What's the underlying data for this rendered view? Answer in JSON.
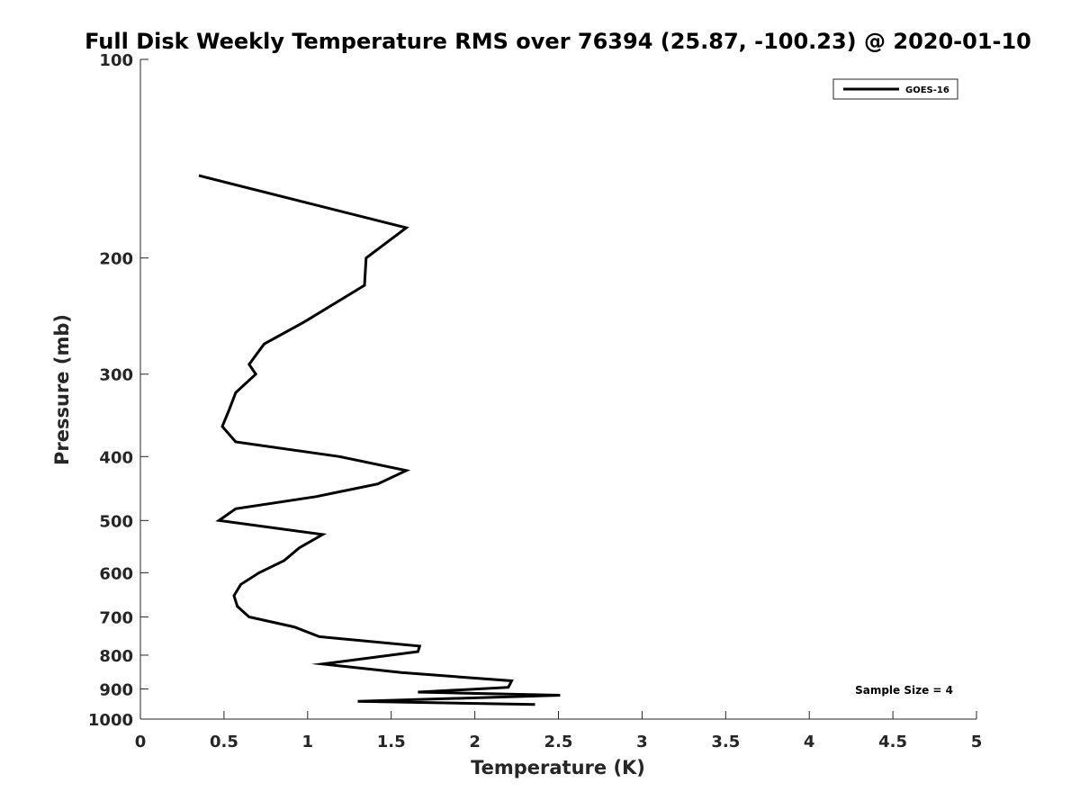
{
  "chart_data": {
    "type": "line",
    "title": "Full Disk Weekly Temperature RMS over 76394 (25.87, -100.23) @ 2020-01-10",
    "xlabel": "Temperature (K)",
    "ylabel": "Pressure (mb)",
    "xlim": [
      0,
      5
    ],
    "ylim": [
      1000,
      100
    ],
    "yscale": "log",
    "y_reversed": true,
    "grid": false,
    "x_ticks": [
      "0",
      "0.5",
      "1",
      "1.5",
      "2",
      "2.5",
      "3",
      "3.5",
      "4",
      "4.5",
      "5"
    ],
    "y_ticks": [
      "100",
      "200",
      "300",
      "400",
      "500",
      "600",
      "700",
      "800",
      "900",
      "1000"
    ],
    "legend": {
      "placement": "top-right",
      "entries": [
        "GOES-16"
      ]
    },
    "annotation": "Sample Size = 4",
    "series": [
      {
        "name": "GOES-16",
        "color": "#000000",
        "points": [
          [
            0.35,
            150
          ],
          [
            1.59,
            180
          ],
          [
            1.35,
            200
          ],
          [
            1.34,
            220
          ],
          [
            0.98,
            250
          ],
          [
            0.74,
            270
          ],
          [
            0.65,
            290
          ],
          [
            0.69,
            300
          ],
          [
            0.57,
            320
          ],
          [
            0.53,
            340
          ],
          [
            0.49,
            360
          ],
          [
            0.57,
            380
          ],
          [
            1.19,
            400
          ],
          [
            1.59,
            420
          ],
          [
            1.42,
            440
          ],
          [
            1.05,
            460
          ],
          [
            0.57,
            480
          ],
          [
            0.47,
            500
          ],
          [
            1.09,
            525
          ],
          [
            0.95,
            550
          ],
          [
            0.86,
            575
          ],
          [
            0.71,
            600
          ],
          [
            0.6,
            625
          ],
          [
            0.56,
            650
          ],
          [
            0.58,
            675
          ],
          [
            0.65,
            700
          ],
          [
            0.92,
            725
          ],
          [
            1.07,
            750
          ],
          [
            1.67,
            775
          ],
          [
            1.66,
            790
          ],
          [
            1.09,
            825
          ],
          [
            1.56,
            850
          ],
          [
            2.22,
            875
          ],
          [
            2.2,
            895
          ],
          [
            1.66,
            910
          ],
          [
            2.51,
            920
          ],
          [
            1.3,
            940
          ],
          [
            2.36,
            950
          ]
        ]
      }
    ]
  }
}
